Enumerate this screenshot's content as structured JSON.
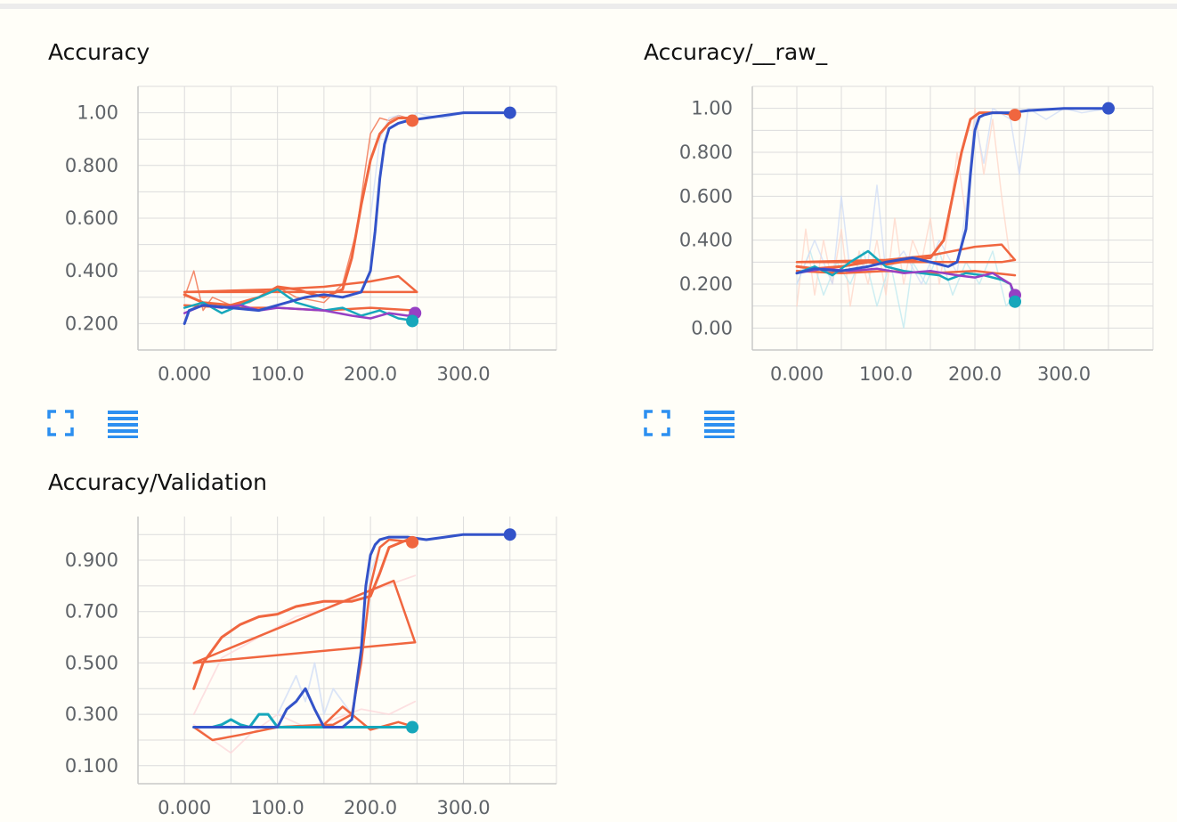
{
  "colors": {
    "orange": "#f0663f",
    "blue": "#3353c9",
    "cyan": "#16a7bb",
    "purple": "#9640c4",
    "light_orange": "#ffd5c8",
    "light_blue": "#cfdcf7",
    "light_cyan": "#bde8f0",
    "light_pink": "#fcd6da",
    "grid": "#dcdcdc",
    "axis": "#c8c8c8",
    "icon": "#2c8ff0"
  },
  "toolbar": {
    "expand_icon": "expand-icon",
    "data_icon": "data-table-icon"
  },
  "chart_data": [
    {
      "type": "line",
      "title": "Accuracy",
      "xlabel": "",
      "ylabel": "",
      "xlim": [
        -50,
        400
      ],
      "ylim": [
        0.1,
        1.1
      ],
      "xticks": [
        0,
        100,
        200,
        300
      ],
      "xtick_labels": [
        "0.000",
        "100.0",
        "200.0",
        "300.0"
      ],
      "yticks": [
        0.2,
        0.4,
        0.6,
        0.8,
        1.0
      ],
      "ytick_labels": [
        "0.200",
        "0.400",
        "0.600",
        "0.800",
        "1.00"
      ],
      "grid": true,
      "series": [
        {
          "color": "orange",
          "faint": true,
          "width": 1.5,
          "x": [
            0,
            10,
            20,
            30,
            50,
            70,
            100,
            120,
            150,
            170,
            185,
            195,
            200,
            210,
            220,
            230,
            240,
            248
          ],
          "y": [
            0.3,
            0.4,
            0.25,
            0.3,
            0.27,
            0.28,
            0.34,
            0.3,
            0.28,
            0.35,
            0.55,
            0.8,
            0.92,
            0.98,
            0.97,
            0.99,
            0.98,
            0.99
          ]
        },
        {
          "color": "light_blue",
          "faint": true,
          "width": 1.5,
          "x": [
            200,
            210,
            220,
            230,
            240,
            250,
            260,
            280,
            300,
            330,
            350
          ],
          "y": [
            0.6,
            0.9,
            0.98,
            0.99,
            0.97,
            1.0,
            0.99,
            0.98,
            1.0,
            1.0,
            1.0
          ]
        },
        {
          "color": "orange",
          "width": 3,
          "x": [
            0,
            20,
            50,
            80,
            100,
            120,
            150,
            170,
            180,
            190,
            200,
            210,
            220,
            230,
            240,
            248
          ],
          "y": [
            0.31,
            0.28,
            0.27,
            0.3,
            0.34,
            0.33,
            0.3,
            0.33,
            0.45,
            0.65,
            0.82,
            0.92,
            0.96,
            0.98,
            0.98,
            0.98
          ]
        },
        {
          "color": "orange",
          "width": 2.5,
          "x": [
            0,
            100,
            150,
            200,
            230,
            250,
            240,
            200,
            100,
            0
          ],
          "y": [
            0.32,
            0.33,
            0.34,
            0.36,
            0.38,
            0.32,
            0.32,
            0.32,
            0.32,
            0.32
          ]
        },
        {
          "color": "orange",
          "width": 2.5,
          "x": [
            0,
            50,
            100,
            150,
            200,
            248
          ],
          "y": [
            0.27,
            0.26,
            0.26,
            0.25,
            0.26,
            0.25
          ]
        },
        {
          "color": "cyan",
          "width": 2.5,
          "x": [
            0,
            20,
            40,
            60,
            80,
            100,
            120,
            150,
            170,
            190,
            210,
            230,
            248
          ],
          "y": [
            0.26,
            0.28,
            0.24,
            0.27,
            0.3,
            0.33,
            0.28,
            0.25,
            0.26,
            0.23,
            0.25,
            0.22,
            0.21
          ]
        },
        {
          "color": "purple",
          "width": 2.5,
          "x": [
            0,
            20,
            40,
            60,
            80,
            100,
            150,
            180,
            200,
            220,
            240,
            248
          ],
          "y": [
            0.24,
            0.27,
            0.26,
            0.27,
            0.25,
            0.26,
            0.25,
            0.23,
            0.22,
            0.24,
            0.23,
            0.24
          ]
        },
        {
          "color": "blue",
          "width": 3,
          "x": [
            0,
            5,
            20,
            50,
            80,
            100,
            130,
            150,
            170,
            190,
            200,
            205,
            210,
            215,
            220,
            230,
            240,
            260,
            300,
            330,
            350
          ],
          "y": [
            0.2,
            0.25,
            0.27,
            0.26,
            0.25,
            0.27,
            0.3,
            0.31,
            0.3,
            0.32,
            0.4,
            0.55,
            0.75,
            0.88,
            0.94,
            0.96,
            0.97,
            0.98,
            1.0,
            1.0,
            1.0
          ]
        }
      ],
      "end_markers": [
        {
          "color": "orange",
          "x": 245,
          "y": 0.97
        },
        {
          "color": "blue",
          "x": 350,
          "y": 1.0
        },
        {
          "color": "purple",
          "x": 248,
          "y": 0.24
        },
        {
          "color": "cyan",
          "x": 245,
          "y": 0.21
        }
      ]
    },
    {
      "type": "line",
      "title": "Accuracy/__raw_",
      "xlabel": "",
      "ylabel": "",
      "xlim": [
        -50,
        400
      ],
      "ylim": [
        -0.1,
        1.1
      ],
      "xticks": [
        0,
        100,
        200,
        300
      ],
      "xtick_labels": [
        "0.000",
        "100.0",
        "200.0",
        "300.0"
      ],
      "yticks": [
        0.0,
        0.2,
        0.4,
        0.6,
        0.8,
        1.0
      ],
      "ytick_labels": [
        "0.00",
        "0.200",
        "0.400",
        "0.600",
        "0.800",
        "1.00"
      ],
      "grid": true,
      "series": [
        {
          "color": "light_orange",
          "faint": true,
          "width": 1.5,
          "x": [
            0,
            10,
            20,
            30,
            40,
            50,
            60,
            70,
            80,
            90,
            100,
            110,
            120,
            130,
            140,
            150,
            160,
            170,
            180,
            190,
            200,
            210,
            220,
            230,
            240
          ],
          "y": [
            0.1,
            0.45,
            0.15,
            0.4,
            0.2,
            0.45,
            0.1,
            0.35,
            0.2,
            0.4,
            0.15,
            0.5,
            0.2,
            0.4,
            0.3,
            0.5,
            0.2,
            0.45,
            0.8,
            0.5,
            1.0,
            0.7,
            0.95,
            0.6,
            0.3
          ]
        },
        {
          "color": "light_cyan",
          "faint": true,
          "width": 1.5,
          "x": [
            0,
            15,
            30,
            45,
            60,
            75,
            90,
            105,
            120,
            130,
            145,
            160,
            175,
            190,
            205,
            220,
            235,
            245
          ],
          "y": [
            0.2,
            0.35,
            0.15,
            0.3,
            0.2,
            0.35,
            0.1,
            0.3,
            0.0,
            0.3,
            0.2,
            0.35,
            0.15,
            0.3,
            0.2,
            0.35,
            0.1,
            0.15
          ]
        },
        {
          "color": "light_blue",
          "faint": true,
          "width": 1.5,
          "x": [
            0,
            20,
            40,
            50,
            60,
            80,
            90,
            100,
            120,
            140,
            160,
            180,
            190,
            200,
            210,
            220,
            240,
            250,
            260,
            280,
            300,
            320,
            350
          ],
          "y": [
            0.2,
            0.4,
            0.2,
            0.6,
            0.25,
            0.3,
            0.65,
            0.25,
            0.35,
            0.2,
            0.4,
            0.25,
            0.55,
            0.95,
            0.75,
            1.0,
            0.95,
            0.7,
            1.0,
            0.95,
            1.0,
            0.98,
            1.0
          ]
        },
        {
          "color": "orange",
          "width": 3,
          "x": [
            0,
            20,
            50,
            80,
            100,
            130,
            150,
            165,
            175,
            185,
            195,
            205,
            215,
            230,
            245
          ],
          "y": [
            0.28,
            0.27,
            0.28,
            0.3,
            0.29,
            0.31,
            0.32,
            0.4,
            0.6,
            0.8,
            0.95,
            0.98,
            0.98,
            0.98,
            0.97
          ]
        },
        {
          "color": "orange",
          "width": 2.5,
          "x": [
            0,
            100,
            150,
            200,
            230,
            245,
            230,
            200,
            100,
            0
          ],
          "y": [
            0.3,
            0.31,
            0.33,
            0.37,
            0.38,
            0.31,
            0.3,
            0.3,
            0.3,
            0.3
          ]
        },
        {
          "color": "orange",
          "width": 2.5,
          "x": [
            0,
            50,
            100,
            150,
            200,
            245
          ],
          "y": [
            0.26,
            0.25,
            0.26,
            0.25,
            0.26,
            0.24
          ]
        },
        {
          "color": "cyan",
          "width": 2.5,
          "x": [
            0,
            20,
            40,
            60,
            80,
            100,
            120,
            140,
            160,
            170,
            190,
            210,
            230,
            240,
            245
          ],
          "y": [
            0.25,
            0.28,
            0.24,
            0.3,
            0.35,
            0.28,
            0.26,
            0.25,
            0.24,
            0.22,
            0.25,
            0.24,
            0.22,
            0.2,
            0.12
          ]
        },
        {
          "color": "purple",
          "width": 2.5,
          "x": [
            0,
            30,
            60,
            90,
            120,
            150,
            180,
            200,
            220,
            240,
            245
          ],
          "y": [
            0.25,
            0.27,
            0.26,
            0.27,
            0.25,
            0.26,
            0.24,
            0.23,
            0.25,
            0.2,
            0.15
          ]
        },
        {
          "color": "blue",
          "width": 3,
          "x": [
            0,
            20,
            50,
            80,
            100,
            130,
            150,
            170,
            180,
            190,
            195,
            200,
            205,
            210,
            220,
            240,
            260,
            300,
            350
          ],
          "y": [
            0.25,
            0.27,
            0.26,
            0.28,
            0.3,
            0.32,
            0.3,
            0.28,
            0.3,
            0.45,
            0.7,
            0.9,
            0.96,
            0.97,
            0.98,
            0.98,
            0.99,
            1.0,
            1.0
          ]
        }
      ],
      "end_markers": [
        {
          "color": "orange",
          "x": 245,
          "y": 0.97
        },
        {
          "color": "blue",
          "x": 350,
          "y": 1.0
        },
        {
          "color": "purple",
          "x": 245,
          "y": 0.15
        },
        {
          "color": "cyan",
          "x": 245,
          "y": 0.12
        }
      ]
    },
    {
      "type": "line",
      "title": "Accuracy/Validation",
      "xlabel": "",
      "ylabel": "",
      "xlim": [
        -50,
        400
      ],
      "ylim": [
        0.03,
        1.07
      ],
      "xticks": [
        0,
        100,
        200,
        300
      ],
      "xtick_labels": [
        "0.000",
        "100.0",
        "200.0",
        "300.0"
      ],
      "yticks": [
        0.1,
        0.3,
        0.5,
        0.7,
        0.9
      ],
      "ytick_labels": [
        "0.100",
        "0.300",
        "0.500",
        "0.700",
        "0.900"
      ],
      "grid": true,
      "series": [
        {
          "color": "light_pink",
          "faint": true,
          "width": 1.8,
          "x": [
            10,
            40,
            80,
            120,
            160,
            200,
            248
          ],
          "y": [
            0.3,
            0.52,
            0.6,
            0.68,
            0.72,
            0.78,
            0.84
          ]
        },
        {
          "color": "light_pink",
          "faint": true,
          "width": 1.8,
          "x": [
            10,
            30,
            50,
            70,
            100,
            130,
            160,
            190,
            220,
            248
          ],
          "y": [
            0.26,
            0.2,
            0.15,
            0.22,
            0.3,
            0.25,
            0.28,
            0.32,
            0.3,
            0.35
          ]
        },
        {
          "color": "light_blue",
          "faint": true,
          "width": 1.8,
          "x": [
            100,
            120,
            130,
            140,
            150,
            160,
            180,
            190,
            200,
            210
          ],
          "y": [
            0.3,
            0.45,
            0.35,
            0.5,
            0.3,
            0.4,
            0.3,
            0.5,
            0.85,
            0.95
          ]
        },
        {
          "color": "orange",
          "width": 3,
          "x": [
            10,
            20,
            40,
            60,
            80,
            100,
            120,
            150,
            180,
            200,
            210,
            220,
            240,
            248
          ],
          "y": [
            0.4,
            0.5,
            0.6,
            0.65,
            0.68,
            0.69,
            0.72,
            0.74,
            0.74,
            0.76,
            0.85,
            0.95,
            0.98,
            0.97
          ]
        },
        {
          "color": "orange",
          "width": 2.5,
          "x": [
            10,
            248,
            225,
            10
          ],
          "y": [
            0.5,
            0.58,
            0.82,
            0.5
          ]
        },
        {
          "color": "orange",
          "width": 2.5,
          "x": [
            10,
            30,
            60,
            100,
            150,
            170,
            180,
            190,
            200,
            210,
            220,
            248
          ],
          "y": [
            0.25,
            0.2,
            0.22,
            0.25,
            0.26,
            0.33,
            0.3,
            0.5,
            0.8,
            0.95,
            0.98,
            0.97
          ]
        },
        {
          "color": "orange",
          "width": 2.5,
          "x": [
            10,
            100,
            160,
            180,
            200,
            220,
            230,
            248
          ],
          "y": [
            0.25,
            0.25,
            0.26,
            0.3,
            0.24,
            0.26,
            0.27,
            0.25
          ]
        },
        {
          "color": "cyan",
          "width": 3,
          "x": [
            10,
            30,
            40,
            50,
            60,
            70,
            80,
            90,
            100,
            110,
            120,
            140,
            160,
            180,
            200,
            220,
            248
          ],
          "y": [
            0.25,
            0.25,
            0.26,
            0.28,
            0.26,
            0.25,
            0.3,
            0.3,
            0.25,
            0.25,
            0.25,
            0.25,
            0.25,
            0.25,
            0.25,
            0.25,
            0.25
          ]
        },
        {
          "color": "blue",
          "width": 3,
          "x": [
            10,
            100,
            110,
            120,
            130,
            140,
            150,
            160,
            170,
            180,
            190,
            195,
            200,
            205,
            210,
            220,
            240,
            260,
            280,
            300,
            330,
            350
          ],
          "y": [
            0.25,
            0.25,
            0.32,
            0.35,
            0.4,
            0.32,
            0.25,
            0.25,
            0.25,
            0.28,
            0.55,
            0.8,
            0.92,
            0.96,
            0.98,
            0.99,
            0.99,
            0.98,
            0.99,
            1.0,
            1.0,
            1.0
          ]
        }
      ],
      "end_markers": [
        {
          "color": "orange",
          "x": 245,
          "y": 0.97
        },
        {
          "color": "blue",
          "x": 350,
          "y": 1.0
        },
        {
          "color": "cyan",
          "x": 245,
          "y": 0.25
        }
      ]
    }
  ]
}
